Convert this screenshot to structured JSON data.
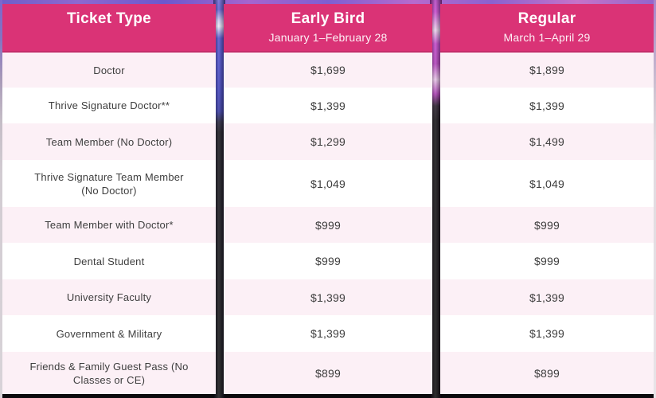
{
  "table": {
    "columns": [
      {
        "header": "Ticket Type",
        "subheader": ""
      },
      {
        "header": "Early Bird",
        "subheader": "January 1–February 28"
      },
      {
        "header": "Regular",
        "subheader": "March 1–April 29"
      }
    ],
    "rows": [
      {
        "ticket_type": "Doctor",
        "early_bird": "$1,699",
        "regular": "$1,899"
      },
      {
        "ticket_type": "Thrive Signature Doctor**",
        "early_bird": "$1,399",
        "regular": "$1,399"
      },
      {
        "ticket_type": "Team Member (No Doctor)",
        "early_bird": "$1,299",
        "regular": "$1,499"
      },
      {
        "ticket_type": "Thrive Signature Team Member (No Doctor)",
        "early_bird": "$1,049",
        "regular": "$1,049"
      },
      {
        "ticket_type": "Team Member with Doctor*",
        "early_bird": "$999",
        "regular": "$999"
      },
      {
        "ticket_type": "Dental Student",
        "early_bird": "$999",
        "regular": "$999"
      },
      {
        "ticket_type": "University Faculty",
        "early_bird": "$1,399",
        "regular": "$1,399"
      },
      {
        "ticket_type": "Government & Military",
        "early_bird": "$1,399",
        "regular": "$1,399"
      },
      {
        "ticket_type": "Friends & Family Guest Pass (No Classes or CE)",
        "early_bird": "$899",
        "regular": "$899"
      }
    ],
    "colors": {
      "header_bg": "#DA3376",
      "row_pink": "#FCF0F6",
      "row_white": "#FFFFFF",
      "header_text": "#FFFFFF",
      "body_text": "#3E3E3E"
    }
  }
}
